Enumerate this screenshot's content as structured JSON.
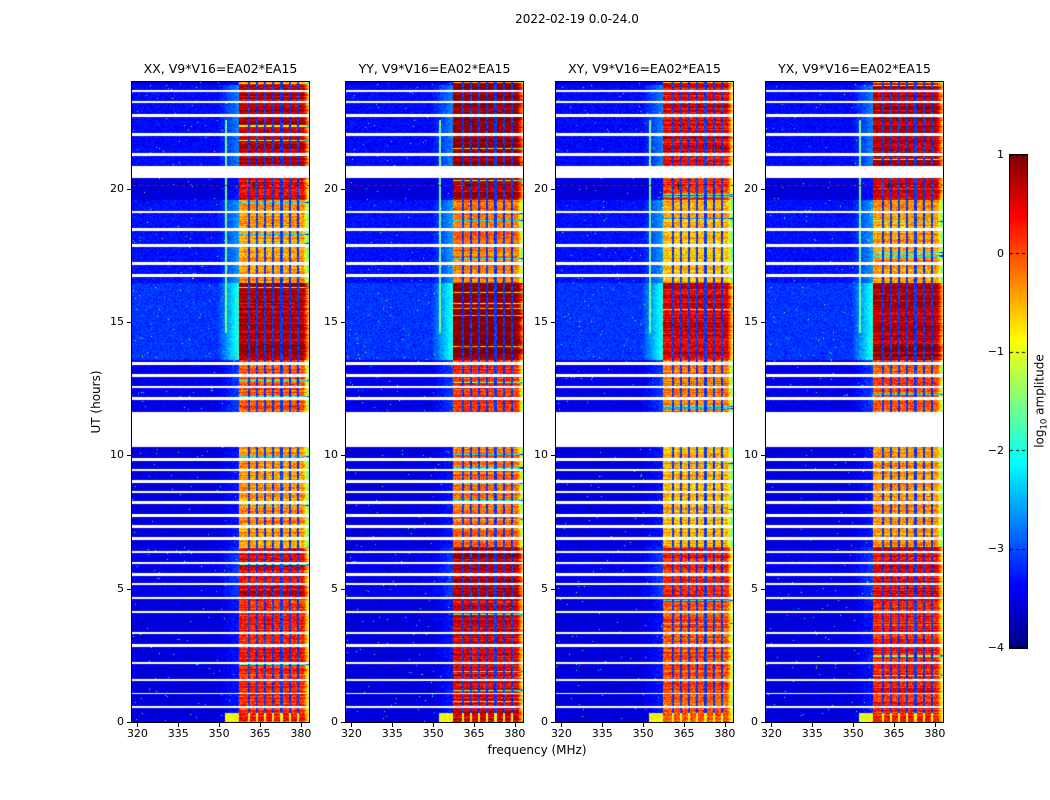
{
  "figure": {
    "suptitle": "2022-02-19 0.0-24.0",
    "xlabel": "frequency (MHz)",
    "ylabel": "UT (hours)",
    "colorbar": {
      "label": "log10 amplitude",
      "label_pre": "log",
      "label_sub": "10",
      "label_post": " amplitude"
    }
  },
  "chart_data": {
    "type": "heatmap",
    "title": "2022-02-19 0.0-24.0",
    "colormap": "jet",
    "panels": [
      {
        "title": "XX, V9*V16=EA02*EA15"
      },
      {
        "title": "YY, V9*V16=EA02*EA15"
      },
      {
        "title": "XY, V9*V16=EA02*EA15"
      },
      {
        "title": "YX, V9*V16=EA02*EA15"
      }
    ],
    "x_axis": {
      "label": "frequency (MHz)",
      "range": [
        318,
        383
      ],
      "ticks": [
        320,
        335,
        350,
        365,
        380
      ]
    },
    "y_axis": {
      "label": "UT (hours)",
      "range": [
        0,
        24
      ],
      "ticks": [
        0,
        5,
        10,
        15,
        20
      ]
    },
    "colorbar": {
      "label": "log10 amplitude",
      "vmin": -4,
      "vmax": 1,
      "ticks": [
        1,
        0,
        -1,
        -2,
        -3,
        -4
      ],
      "tick_labels": [
        "1",
        "0",
        "−1",
        "−2",
        "−3",
        "−4"
      ]
    },
    "features": {
      "value_range_log10": [
        -4,
        1
      ],
      "background_level_log10": -3.55,
      "rfi_band_mhz": [
        357.3,
        383
      ],
      "rfi_notch_freqs_mhz": [
        360.9,
        363.9,
        366.9,
        369.9,
        372.9,
        375.9,
        378.9
      ],
      "narrow_line_mhz": 352.6,
      "narrow_line_ut_range": [
        14.6,
        22.6
      ],
      "marker_line_ut": 20.15,
      "marker_cross_mhz": [
        360.3,
        362.9
      ],
      "data_gap_ut": [
        [
          10.35,
          11.65
        ],
        [
          20.42,
          20.85
        ]
      ],
      "thin_gap_ut": [
        [
          0.55,
          0.62
        ],
        [
          1.05,
          1.12
        ],
        [
          1.55,
          1.62
        ],
        [
          2.2,
          2.28
        ],
        [
          2.85,
          2.95
        ],
        [
          3.3,
          3.38
        ],
        [
          4.1,
          4.18
        ],
        [
          4.62,
          4.7
        ],
        [
          5.15,
          5.22
        ],
        [
          5.5,
          5.62
        ],
        [
          5.95,
          6.02
        ],
        [
          6.35,
          6.42
        ],
        [
          6.85,
          6.95
        ],
        [
          7.3,
          7.42
        ],
        [
          7.72,
          7.8
        ],
        [
          8.2,
          8.32
        ],
        [
          8.6,
          8.68
        ],
        [
          9.0,
          9.08
        ],
        [
          9.42,
          9.5
        ],
        [
          9.82,
          9.9
        ],
        [
          12.1,
          12.22
        ],
        [
          12.55,
          12.62
        ],
        [
          12.95,
          13.05
        ],
        [
          13.4,
          13.5
        ],
        [
          16.7,
          16.82
        ],
        [
          17.15,
          17.25
        ],
        [
          17.85,
          17.95
        ],
        [
          18.45,
          18.55
        ],
        [
          19.1,
          19.2
        ],
        [
          21.25,
          21.35
        ],
        [
          22.0,
          22.1
        ],
        [
          22.7,
          22.8
        ],
        [
          23.25,
          23.32
        ],
        [
          23.65,
          23.72
        ]
      ],
      "bright_background_ut": [
        [
          13.6,
          16.5,
          0.95
        ],
        [
          16.5,
          19.6,
          0.5
        ],
        [
          20.85,
          23.9,
          0.4
        ],
        [
          11.65,
          13.6,
          0.15
        ],
        [
          4.6,
          6.6,
          0.15
        ]
      ],
      "band_strength_ut": [
        [
          0,
          4.6,
          0.82
        ],
        [
          4.6,
          6.6,
          0.9
        ],
        [
          6.6,
          10.35,
          0.62
        ],
        [
          11.65,
          13.6,
          0.72
        ],
        [
          13.6,
          16.5,
          1.02
        ],
        [
          16.5,
          19.6,
          0.6
        ],
        [
          19.6,
          20.42,
          0.9
        ],
        [
          20.85,
          24,
          1.0
        ]
      ],
      "panel_gain": [
        0.97,
        1.08,
        0.88,
        0.97
      ],
      "panel_seeds": [
        11,
        23,
        37,
        49
      ]
    }
  }
}
